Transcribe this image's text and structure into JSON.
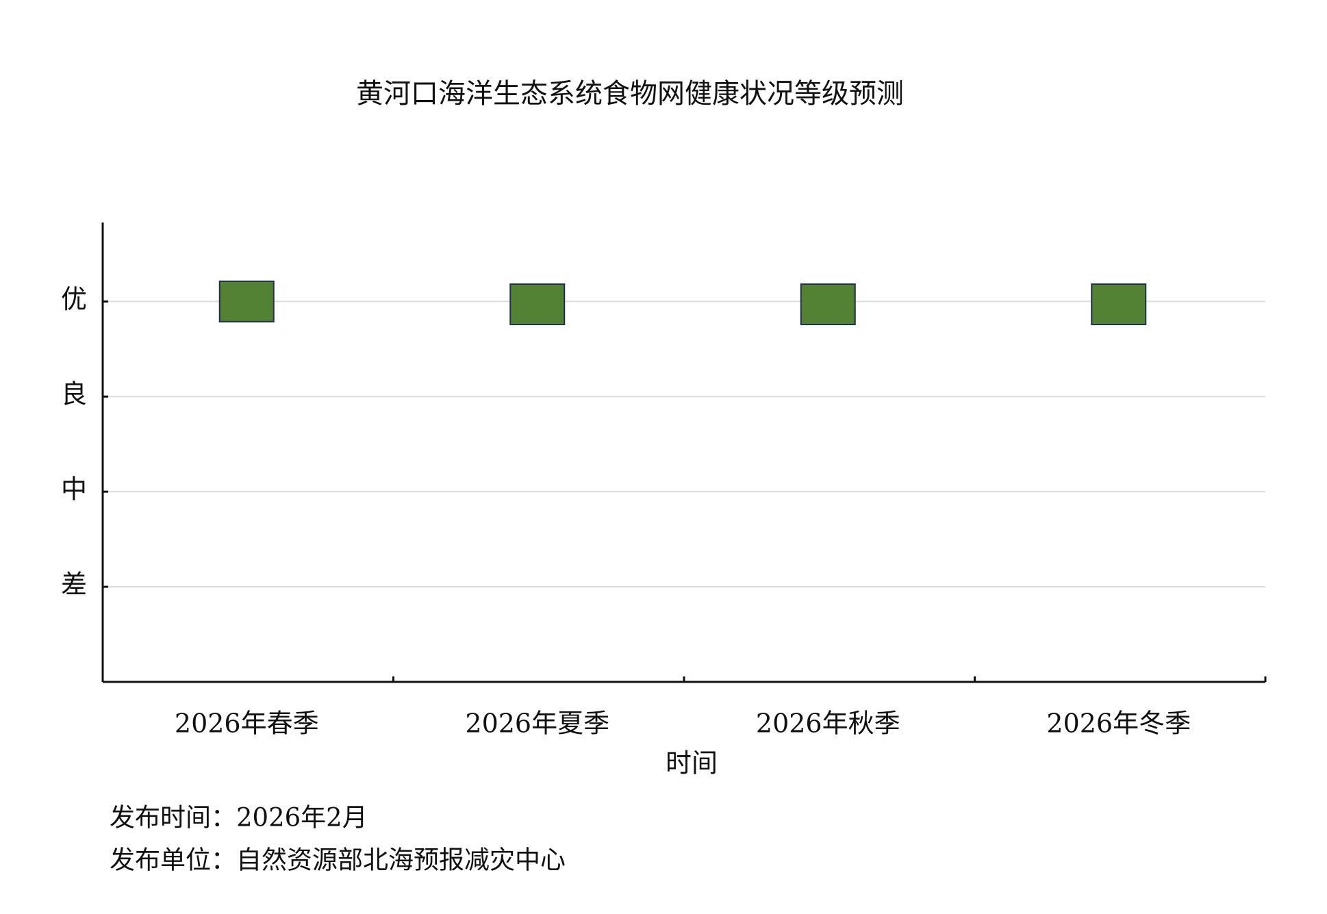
{
  "chart_data": {
    "type": "scatter",
    "title": "黄河口海洋生态系统食物网健康状况等级预测",
    "x_label": "时间",
    "categories": [
      "2026年春季",
      "2026年夏季",
      "2026年秋季",
      "2026年冬季"
    ],
    "values": [
      4,
      3.97,
      3.97,
      3.97
    ],
    "color": "#548235",
    "ylim": [
      0,
      4.83
    ],
    "yticks": [
      {
        "value": 1,
        "label": "差"
      },
      {
        "value": 2,
        "label": "中"
      },
      {
        "value": 3,
        "label": "良"
      },
      {
        "value": 4,
        "label": "优"
      }
    ],
    "grid": true,
    "footnotes": [
      "发布时间：2026年2月",
      "发布单位：自然资源部北海预报减灾中心"
    ]
  }
}
